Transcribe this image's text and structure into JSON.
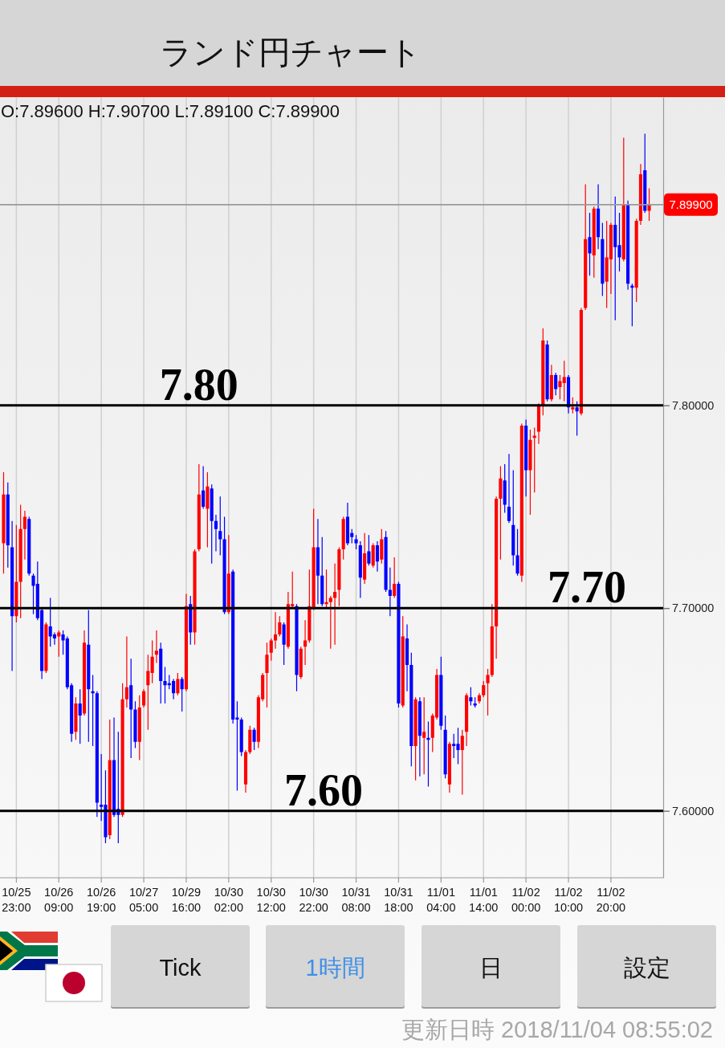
{
  "chart_data": {
    "type": "candlestick",
    "title": "ランド円チャート",
    "subtitle": "O:7.89600 H:7.90700 L:7.89100 C:7.89900",
    "categories": [
      null,
      null,
      null,
      "10/25 23:00",
      null,
      null,
      null,
      null,
      null,
      null,
      null,
      null,
      null,
      "10/26 09:00",
      null,
      null,
      null,
      null,
      null,
      null,
      null,
      null,
      null,
      "10/26 19:00",
      null,
      null,
      null,
      null,
      null,
      null,
      null,
      null,
      null,
      "10/27 05:00",
      null,
      null,
      null,
      null,
      null,
      null,
      null,
      null,
      null,
      "10/29 16:00",
      null,
      null,
      null,
      null,
      null,
      null,
      null,
      null,
      null,
      "10/30 02:00",
      null,
      null,
      null,
      null,
      null,
      null,
      null,
      null,
      null,
      "10/30 12:00",
      null,
      null,
      null,
      null,
      null,
      null,
      null,
      null,
      null,
      "10/30 22:00",
      null,
      null,
      null,
      null,
      null,
      null,
      null,
      null,
      null,
      "10/31 08:00",
      null,
      null,
      null,
      null,
      null,
      null,
      null,
      null,
      null,
      "10/31 18:00",
      null,
      null,
      null,
      null,
      null,
      null,
      null,
      null,
      null,
      "11/01 04:00",
      null,
      null,
      null,
      null,
      null,
      null,
      null,
      null,
      null,
      "11/01 14:00",
      null,
      null,
      null,
      null,
      null,
      null,
      null,
      null,
      null,
      "11/02 00:00",
      null,
      null,
      null,
      null,
      null,
      null,
      null,
      null,
      null,
      "11/02 10:00",
      null,
      null,
      null,
      null,
      null,
      null,
      null,
      null,
      null,
      "11/02 20:00",
      null,
      null,
      null,
      null,
      null,
      null,
      null,
      null,
      null
    ],
    "ohlc": [
      [
        7.732,
        7.767,
        7.717,
        7.756
      ],
      [
        7.756,
        7.762,
        7.72,
        7.731
      ],
      [
        7.73,
        7.743,
        7.669,
        7.696
      ],
      [
        7.696,
        7.741,
        7.693,
        7.713
      ],
      [
        7.713,
        7.751,
        7.695,
        7.739
      ],
      [
        7.739,
        7.748,
        7.724,
        7.745
      ],
      [
        7.744,
        7.745,
        7.716,
        7.717
      ],
      [
        7.716,
        7.717,
        7.697,
        7.711
      ],
      [
        7.712,
        7.723,
        7.694,
        7.695
      ],
      [
        7.699,
        7.7,
        7.665,
        7.669
      ],
      [
        7.669,
        7.693,
        7.668,
        7.692
      ],
      [
        7.691,
        7.705,
        7.681,
        7.686
      ],
      [
        7.687,
        7.688,
        7.682,
        7.685
      ],
      [
        7.686,
        7.689,
        7.676,
        7.688
      ],
      [
        7.687,
        7.689,
        7.677,
        7.684
      ],
      [
        7.685,
        7.686,
        7.66,
        7.661
      ],
      [
        7.662,
        7.663,
        7.634,
        7.638
      ],
      [
        7.639,
        7.656,
        7.635,
        7.653
      ],
      [
        7.653,
        7.66,
        7.633,
        7.647
      ],
      [
        7.648,
        7.689,
        7.647,
        7.683
      ],
      [
        7.682,
        7.699,
        7.634,
        7.66
      ],
      [
        7.659,
        7.667,
        7.632,
        7.658
      ],
      [
        7.658,
        7.659,
        7.597,
        7.604
      ],
      [
        7.603,
        7.628,
        7.595,
        7.602
      ],
      [
        7.603,
        7.62,
        7.584,
        7.587
      ],
      [
        7.588,
        7.645,
        7.586,
        7.625
      ],
      [
        7.625,
        7.646,
        7.597,
        7.598
      ],
      [
        7.601,
        7.639,
        7.584,
        7.598
      ],
      [
        7.598,
        7.663,
        7.597,
        7.655
      ],
      [
        7.655,
        7.686,
        7.651,
        7.661
      ],
      [
        7.662,
        7.675,
        7.626,
        7.65
      ],
      [
        7.65,
        7.654,
        7.631,
        7.634
      ],
      [
        7.634,
        7.657,
        7.625,
        7.651
      ],
      [
        7.652,
        7.66,
        7.651,
        7.659
      ],
      [
        7.662,
        7.677,
        7.64,
        7.669
      ],
      [
        7.668,
        7.684,
        7.663,
        7.676
      ],
      [
        7.677,
        7.689,
        7.673,
        7.679
      ],
      [
        7.68,
        7.683,
        7.653,
        7.664
      ],
      [
        7.664,
        7.671,
        7.653,
        7.662
      ],
      [
        7.663,
        7.667,
        7.66,
        7.662
      ],
      [
        7.664,
        7.665,
        7.655,
        7.658
      ],
      [
        7.658,
        7.668,
        7.657,
        7.665
      ],
      [
        7.665,
        7.666,
        7.649,
        7.66
      ],
      [
        7.66,
        7.707,
        7.659,
        7.701
      ],
      [
        7.702,
        7.706,
        7.682,
        7.688
      ],
      [
        7.688,
        7.729,
        7.682,
        7.728
      ],
      [
        7.729,
        7.771,
        7.728,
        7.756
      ],
      [
        7.758,
        7.77,
        7.749,
        7.75
      ],
      [
        7.749,
        7.767,
        7.73,
        7.76
      ],
      [
        7.759,
        7.761,
        7.722,
        7.743
      ],
      [
        7.743,
        7.746,
        7.728,
        7.739
      ],
      [
        7.738,
        7.755,
        7.726,
        7.734
      ],
      [
        7.734,
        7.745,
        7.697,
        7.698
      ],
      [
        7.698,
        7.736,
        7.697,
        7.717
      ],
      [
        7.718,
        7.719,
        7.643,
        7.645
      ],
      [
        7.646,
        7.654,
        7.61,
        7.645
      ],
      [
        7.645,
        7.646,
        7.627,
        7.629
      ],
      [
        7.613,
        7.63,
        7.609,
        7.629
      ],
      [
        7.629,
        7.642,
        7.628,
        7.64
      ],
      [
        7.64,
        7.641,
        7.63,
        7.634
      ],
      [
        7.634,
        7.657,
        7.631,
        7.656
      ],
      [
        7.655,
        7.668,
        7.654,
        7.667
      ],
      [
        7.668,
        7.683,
        7.651,
        7.677
      ],
      [
        7.678,
        7.685,
        7.674,
        7.684
      ],
      [
        7.684,
        7.698,
        7.68,
        7.687
      ],
      [
        7.687,
        7.696,
        7.686,
        7.693
      ],
      [
        7.692,
        7.693,
        7.672,
        7.682
      ],
      [
        7.681,
        7.708,
        7.68,
        7.702
      ],
      [
        7.701,
        7.718,
        7.7,
        7.702
      ],
      [
        7.701,
        7.702,
        7.659,
        7.667
      ],
      [
        7.666,
        7.681,
        7.665,
        7.68
      ],
      [
        7.681,
        7.694,
        7.672,
        7.684
      ],
      [
        7.684,
        7.719,
        7.683,
        7.701
      ],
      [
        7.7,
        7.749,
        7.699,
        7.73
      ],
      [
        7.73,
        7.744,
        7.702,
        7.716
      ],
      [
        7.716,
        7.735,
        7.701,
        7.702
      ],
      [
        7.702,
        7.719,
        7.7,
        7.703
      ],
      [
        7.703,
        7.706,
        7.68,
        7.705
      ],
      [
        7.705,
        7.722,
        7.682,
        7.708
      ],
      [
        7.709,
        7.73,
        7.701,
        7.729
      ],
      [
        7.729,
        7.745,
        7.724,
        7.744
      ],
      [
        7.745,
        7.752,
        7.731,
        7.732
      ],
      [
        7.737,
        7.739,
        7.732,
        7.735
      ],
      [
        7.734,
        7.736,
        7.729,
        7.732
      ],
      [
        7.731,
        7.733,
        7.705,
        7.715
      ],
      [
        7.714,
        7.737,
        7.712,
        7.727
      ],
      [
        7.728,
        7.736,
        7.721,
        7.722
      ],
      [
        7.721,
        7.732,
        7.72,
        7.731
      ],
      [
        7.731,
        7.733,
        7.718,
        7.723
      ],
      [
        7.724,
        7.739,
        7.722,
        7.734
      ],
      [
        7.735,
        7.738,
        7.708,
        7.709
      ],
      [
        7.709,
        7.72,
        7.696,
        7.706
      ],
      [
        7.706,
        7.725,
        7.705,
        7.712
      ],
      [
        7.712,
        7.713,
        7.651,
        7.653
      ],
      [
        7.652,
        7.696,
        7.651,
        7.686
      ],
      [
        7.685,
        7.692,
        7.659,
        7.672
      ],
      [
        7.672,
        7.678,
        7.622,
        7.632
      ],
      [
        7.632,
        7.656,
        7.615,
        7.655
      ],
      [
        7.654,
        7.656,
        7.617,
        7.637
      ],
      [
        7.636,
        7.656,
        7.618,
        7.639
      ],
      [
        7.636,
        7.644,
        7.612,
        7.635
      ],
      [
        7.636,
        7.648,
        7.629,
        7.647
      ],
      [
        7.646,
        7.67,
        7.645,
        7.667
      ],
      [
        7.667,
        7.676,
        7.64,
        7.642
      ],
      [
        7.64,
        7.647,
        7.616,
        7.618
      ],
      [
        7.613,
        7.634,
        7.609,
        7.633
      ],
      [
        7.633,
        7.638,
        7.626,
        7.632
      ],
      [
        7.633,
        7.641,
        7.623,
        7.63
      ],
      [
        7.63,
        7.64,
        7.608,
        7.637
      ],
      [
        7.639,
        7.658,
        7.632,
        7.657
      ],
      [
        7.656,
        7.661,
        7.652,
        7.654
      ],
      [
        7.653,
        7.656,
        7.651,
        7.652
      ],
      [
        7.654,
        7.658,
        7.653,
        7.657
      ],
      [
        7.657,
        7.664,
        7.656,
        7.662
      ],
      [
        7.663,
        7.67,
        7.647,
        7.667
      ],
      [
        7.667,
        7.702,
        7.666,
        7.691
      ],
      [
        7.691,
        7.755,
        7.675,
        7.754
      ],
      [
        7.754,
        7.77,
        7.724,
        7.764
      ],
      [
        7.763,
        7.771,
        7.747,
        7.751
      ],
      [
        7.75,
        7.776,
        7.742,
        7.743
      ],
      [
        7.741,
        7.768,
        7.721,
        7.726
      ],
      [
        7.726,
        7.739,
        7.716,
        7.717
      ],
      [
        7.716,
        7.791,
        7.713,
        7.79
      ],
      [
        7.79,
        7.793,
        7.755,
        7.768
      ],
      [
        7.768,
        7.788,
        7.746,
        7.783
      ],
      [
        7.784,
        7.789,
        7.757,
        7.785
      ],
      [
        7.787,
        7.801,
        7.781,
        7.8
      ],
      [
        7.8,
        7.838,
        7.795,
        7.832
      ],
      [
        7.83,
        7.832,
        7.802,
        7.803
      ],
      [
        7.803,
        7.82,
        7.802,
        7.815
      ],
      [
        7.815,
        7.816,
        7.805,
        7.808
      ],
      [
        7.809,
        7.815,
        7.803,
        7.812
      ],
      [
        7.811,
        7.822,
        7.802,
        7.814
      ],
      [
        7.814,
        7.815,
        7.796,
        7.799
      ],
      [
        7.798,
        7.804,
        7.796,
        7.799
      ],
      [
        7.799,
        7.802,
        7.785,
        7.797
      ],
      [
        7.796,
        7.848,
        7.795,
        7.847
      ],
      [
        7.848,
        7.909,
        7.847,
        7.882
      ],
      [
        7.883,
        7.895,
        7.864,
        7.875
      ],
      [
        7.874,
        7.898,
        7.863,
        7.897
      ],
      [
        7.897,
        7.909,
        7.877,
        7.883
      ],
      [
        7.882,
        7.89,
        7.854,
        7.86
      ],
      [
        7.861,
        7.891,
        7.848,
        7.873
      ],
      [
        7.872,
        7.89,
        7.855,
        7.889
      ],
      [
        7.889,
        7.903,
        7.842,
        7.878
      ],
      [
        7.879,
        7.895,
        7.866,
        7.873
      ],
      [
        7.872,
        7.932,
        7.871,
        7.899
      ],
      [
        7.899,
        7.901,
        7.857,
        7.86
      ],
      [
        7.859,
        7.86,
        7.839,
        7.858
      ],
      [
        7.858,
        7.892,
        7.851,
        7.891
      ],
      [
        7.891,
        7.919,
        7.889,
        7.914
      ],
      [
        7.916,
        7.934,
        7.895,
        7.896
      ],
      [
        7.896,
        7.907,
        7.891,
        7.899
      ]
    ],
    "colors": [
      "#ff0000",
      "#0000ff",
      "#0000ff",
      "#ff0000",
      "#ff0000",
      "#ff0000",
      "#0000ff",
      "#0000ff",
      "#0000ff",
      "#0000ff",
      "#ff0000",
      "#0000ff",
      "#0000ff",
      "#ff0000",
      "#0000ff",
      "#0000ff",
      "#0000ff",
      "#ff0000",
      "#0000ff",
      "#ff0000",
      "#0000ff",
      "#0000ff",
      "#0000ff",
      "#0000ff",
      "#0000ff",
      "#ff0000",
      "#0000ff",
      "#0000ff",
      "#ff0000",
      "#ff0000",
      "#0000ff",
      "#0000ff",
      "#ff0000",
      "#ff0000",
      "#ff0000",
      "#ff0000",
      "#ff0000",
      "#0000ff",
      "#0000ff",
      "#0000ff",
      "#0000ff",
      "#ff0000",
      "#0000ff",
      "#ff0000",
      "#0000ff",
      "#ff0000",
      "#ff0000",
      "#0000ff",
      "#ff0000",
      "#0000ff",
      "#0000ff",
      "#0000ff",
      "#0000ff",
      "#ff0000",
      "#0000ff",
      "#0000ff",
      "#0000ff",
      "#ff0000",
      "#ff0000",
      "#0000ff",
      "#ff0000",
      "#ff0000",
      "#ff0000",
      "#ff0000",
      "#ff0000",
      "#ff0000",
      "#0000ff",
      "#ff0000",
      "#ff0000",
      "#0000ff",
      "#ff0000",
      "#ff0000",
      "#ff0000",
      "#ff0000",
      "#0000ff",
      "#0000ff",
      "#ff0000",
      "#ff0000",
      "#ff0000",
      "#ff0000",
      "#ff0000",
      "#0000ff",
      "#0000ff",
      "#0000ff",
      "#0000ff",
      "#ff0000",
      "#0000ff",
      "#ff0000",
      "#0000ff",
      "#ff0000",
      "#0000ff",
      "#0000ff",
      "#ff0000",
      "#0000ff",
      "#ff0000",
      "#0000ff",
      "#0000ff",
      "#ff0000",
      "#0000ff",
      "#ff0000",
      "#0000ff",
      "#ff0000",
      "#ff0000",
      "#0000ff",
      "#0000ff",
      "#ff0000",
      "#0000ff",
      "#0000ff",
      "#ff0000",
      "#ff0000",
      "#0000ff",
      "#0000ff",
      "#ff0000",
      "#ff0000",
      "#ff0000",
      "#ff0000",
      "#ff0000",
      "#ff0000",
      "#0000ff",
      "#0000ff",
      "#0000ff",
      "#0000ff",
      "#ff0000",
      "#0000ff",
      "#ff0000",
      "#ff0000",
      "#ff0000",
      "#ff0000",
      "#0000ff",
      "#ff0000",
      "#0000ff",
      "#ff0000",
      "#ff0000",
      "#0000ff",
      "#ff0000",
      "#0000ff",
      "#ff0000",
      "#ff0000",
      "#0000ff",
      "#ff0000",
      "#0000ff",
      "#0000ff",
      "#ff0000",
      "#ff0000",
      "#0000ff",
      "#0000ff",
      "#ff0000",
      "#0000ff",
      "#0000ff",
      "#ff0000",
      "#ff0000",
      "#0000ff",
      "#ff0000"
    ],
    "ylim": [
      7.567,
      7.952
    ],
    "yticks": [
      {
        "value": 7.6,
        "label": "7.60000"
      },
      {
        "value": 7.7,
        "label": "7.70000"
      },
      {
        "value": 7.8,
        "label": "7.80000"
      }
    ],
    "grid": "x",
    "ref_lines": [
      {
        "axis": "y",
        "value": 7.8,
        "label": "7.80",
        "color": "#000000"
      },
      {
        "axis": "y",
        "value": 7.7,
        "label": "7.70",
        "color": "#000000"
      },
      {
        "axis": "y",
        "value": 7.6,
        "label": "7.60",
        "color": "#000000"
      },
      {
        "axis": "y",
        "value": 7.899,
        "label": "7.89900",
        "color": "#9a9a9a"
      }
    ],
    "annotations": [
      "Tick",
      "1時間",
      "日",
      "設定",
      "更新日時 2018/11/04 08:55:02"
    ]
  }
}
